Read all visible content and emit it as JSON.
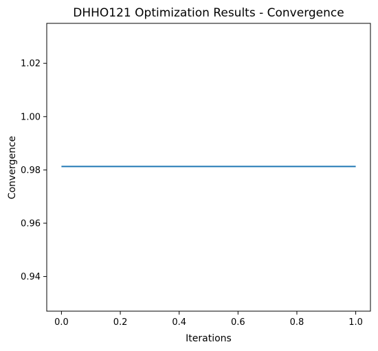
{
  "chart_data": {
    "type": "line",
    "title": "DHHO121 Optimization Results - Convergence",
    "xlabel": "Iterations",
    "ylabel": "Convergence",
    "xlim": [
      -0.05,
      1.05
    ],
    "ylim": [
      0.927,
      1.035
    ],
    "x_ticks": [
      0.0,
      0.2,
      0.4,
      0.6,
      0.8,
      1.0
    ],
    "x_tick_labels": [
      "0.0",
      "0.2",
      "0.4",
      "0.6",
      "0.8",
      "1.0"
    ],
    "y_ticks": [
      0.94,
      0.96,
      0.98,
      1.0,
      1.02
    ],
    "y_tick_labels": [
      "0.94",
      "0.96",
      "0.98",
      "1.00",
      "1.02"
    ],
    "grid": false,
    "series": [
      {
        "x": [
          0.0,
          1.0
        ],
        "values": [
          0.9813,
          0.9813
        ],
        "color": "#1f77b4"
      }
    ]
  }
}
